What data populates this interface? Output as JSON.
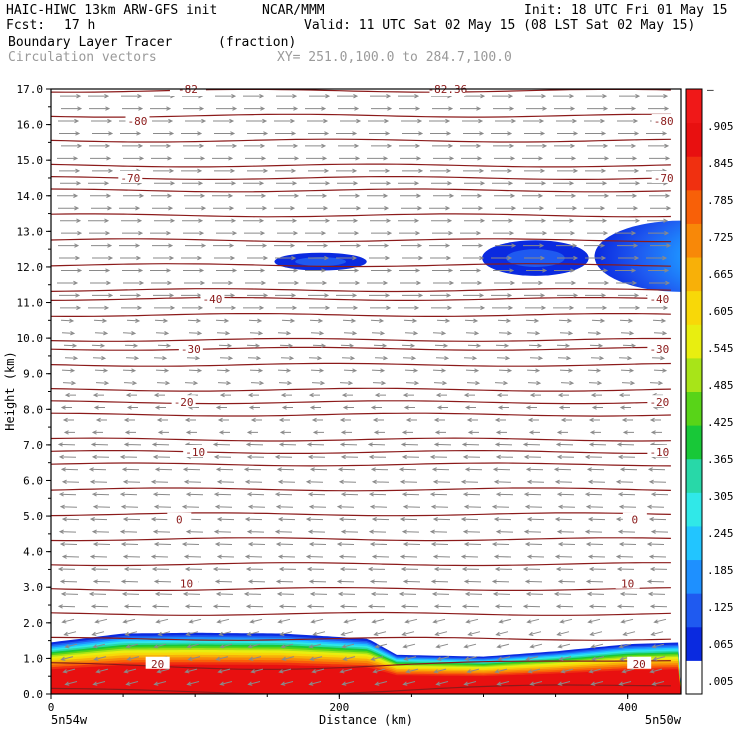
{
  "header": {
    "model": "HAIC-HIWC 13km ARW-GFS init",
    "org": "NCAR/MMM",
    "init": "Init: 18 UTC Fri 01 May 15",
    "fcst_label": "Fcst:",
    "fcst_value": "17 h",
    "valid": "Valid: 11 UTC Sat 02 May 15 (08 LST Sat 02 May 15)",
    "field": "Boundary Layer Tracer",
    "units": "(fraction)",
    "vectors": "Circulation vectors",
    "xy": "XY= 251.0,100.0 to 284.7,100.0"
  },
  "colors": {
    "contour": "#8b1a1a",
    "vector": "#8a8a8a",
    "colorbar": [
      "#ffffff",
      "#0a2ae0",
      "#1f5af0",
      "#1e90ff",
      "#22c5ff",
      "#30e8e8",
      "#28d8a8",
      "#18c838",
      "#58d418",
      "#a8e418",
      "#e8ee10",
      "#f8d808",
      "#f8b008",
      "#f88808",
      "#f86008",
      "#f03010",
      "#e81010",
      "#f01818"
    ]
  },
  "chart_data": {
    "type": "heatmap",
    "title": "Boundary Layer Tracer",
    "xlabel": "Distance (km)",
    "ylabel": "Height (km)",
    "xlim": [
      0,
      437
    ],
    "ylim": [
      0,
      17
    ],
    "x_ticks": [
      0,
      200,
      400
    ],
    "x_tick_labels": [
      "0",
      "200",
      "400"
    ],
    "y_ticks": [
      0,
      1,
      2,
      3,
      4,
      5,
      6,
      7,
      8,
      9,
      10,
      11,
      12,
      13,
      14,
      15,
      16,
      17
    ],
    "y_tick_labels": [
      "0.0",
      "1.0",
      "2.0",
      "3.0",
      "4.0",
      "5.0",
      "6.0",
      "7.0",
      "8.0",
      "9.0",
      "10.0",
      "11.0",
      "12.0",
      "13.0",
      "14.0",
      "15.0",
      "16.0",
      "17.0"
    ],
    "x_endpoints": [
      "5n54w",
      "5n50w"
    ],
    "grid": false,
    "colorbar_labels": [
      "–",
      ".905",
      ".845",
      ".785",
      ".725",
      ".665",
      ".605",
      ".545",
      ".485",
      ".425",
      ".365",
      ".305",
      ".245",
      ".185",
      ".125",
      ".065",
      ".005"
    ],
    "temperature_contours": [
      {
        "label": "-80",
        "height": 16.1,
        "left_x": 60,
        "right_x": 425
      },
      {
        "label": "-70",
        "height": 14.5,
        "left_x": 55,
        "right_x": 425
      },
      {
        "label": "-40",
        "height": 11.1,
        "left_x": 112,
        "right_x": 422
      },
      {
        "label": "-30",
        "height": 9.7,
        "left_x": 97,
        "right_x": 422
      },
      {
        "label": "-20",
        "height": 8.2,
        "left_x": 92,
        "right_x": 422
      },
      {
        "label": "-10",
        "height": 6.8,
        "left_x": 100,
        "right_x": 422
      },
      {
        "label": "0",
        "height": 4.9,
        "left_x": 89,
        "right_x": 405
      },
      {
        "label": "10",
        "height": 3.1,
        "left_x": 94,
        "right_x": 400
      },
      {
        "label": "20",
        "height": 0.85,
        "left_x": 74,
        "right_x": 408
      }
    ],
    "top_labels": [
      {
        "label": "-82",
        "x": 95
      },
      {
        "label": "-82.36",
        "x": 275
      }
    ],
    "tracer_blobs": [
      {
        "x_center": 187,
        "height": 12.15,
        "x_halfwidth": 32,
        "z_halfheight": 0.25,
        "peak": 0.03
      },
      {
        "x_center": 336,
        "height": 12.25,
        "x_halfwidth": 37,
        "z_halfheight": 0.5,
        "peak": 0.04
      },
      {
        "x_center": 437,
        "height": 12.3,
        "x_halfwidth": 60,
        "z_halfheight": 1.0,
        "peak": 0.25
      }
    ],
    "boundary_layer_top": [
      {
        "x": 0,
        "z": 1.45
      },
      {
        "x": 50,
        "z": 1.7
      },
      {
        "x": 100,
        "z": 1.72
      },
      {
        "x": 160,
        "z": 1.7
      },
      {
        "x": 220,
        "z": 1.55
      },
      {
        "x": 240,
        "z": 1.1
      },
      {
        "x": 300,
        "z": 1.05
      },
      {
        "x": 350,
        "z": 1.2
      },
      {
        "x": 400,
        "z": 1.4
      },
      {
        "x": 437,
        "z": 1.45
      }
    ]
  }
}
